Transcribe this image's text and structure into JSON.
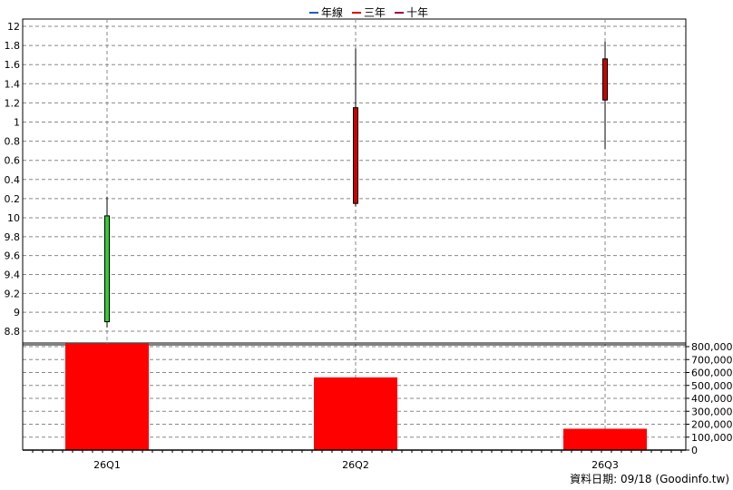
{
  "legend": [
    {
      "label": "年線",
      "color": "#1f5fbf"
    },
    {
      "label": "三年",
      "color": "#e00000"
    },
    {
      "label": "十年",
      "color": "#a0003c"
    }
  ],
  "footer": {
    "date_label": "資料日期: 09/18",
    "source": "(Goodinfo.tw)"
  },
  "chart_data": {
    "type": "candlestick",
    "categories": [
      "26Q1",
      "26Q2",
      "26Q3"
    ],
    "price_axis": {
      "segments": [
        {
          "ticks": [
            "8.8",
            "9",
            "9.2",
            "9.4",
            "9.6",
            "9.8",
            "10"
          ],
          "value_min": 8.8,
          "value_max": 10,
          "label_min": 8.8
        },
        {
          "ticks": [
            "0.2",
            "0.4",
            "0.6",
            "0.8",
            "1",
            "1.2",
            "1.4",
            "1.6",
            "1.8",
            "12"
          ],
          "value_min": 10,
          "value_max": 12,
          "label_min": 0.2
        }
      ]
    },
    "candles": [
      {
        "category": "26Q1",
        "open": 8.9,
        "high": 10.22,
        "low": 8.84,
        "close": 10.02,
        "color": "#33cc33"
      },
      {
        "category": "26Q2",
        "open": 10.15,
        "high": 11.77,
        "low": 10.12,
        "close": 11.15,
        "color": "#cc0000"
      },
      {
        "category": "26Q3",
        "open": 11.23,
        "high": 11.84,
        "low": 10.72,
        "close": 11.66,
        "color": "#cc0000"
      }
    ],
    "volume": {
      "ticks": [
        "0",
        "100,000",
        "200,000",
        "300,000",
        "400,000",
        "500,000",
        "600,000",
        "700,000",
        "800,000"
      ],
      "ylim": [
        0,
        800000
      ],
      "values": [
        823000,
        562000,
        165000
      ],
      "color": "#ff0000"
    }
  }
}
